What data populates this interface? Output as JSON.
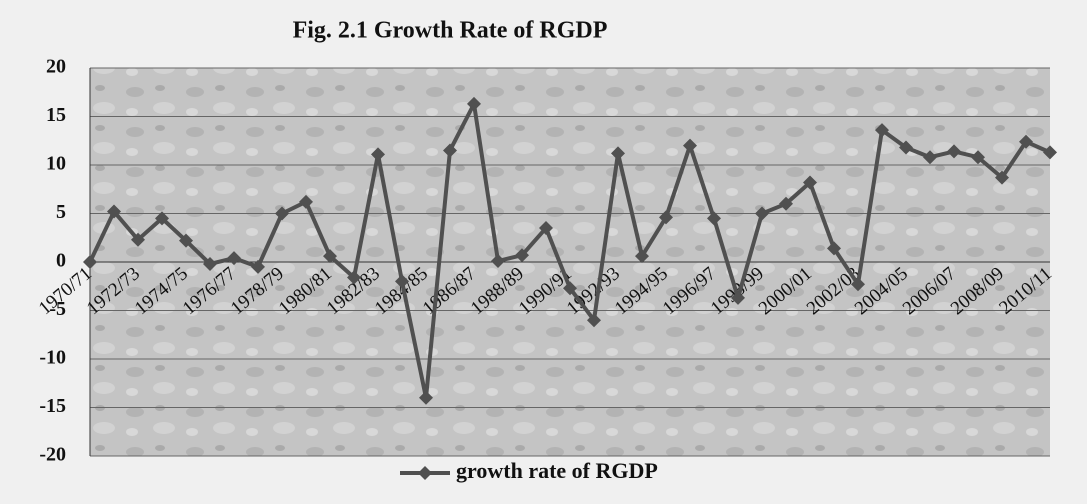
{
  "chart_data": {
    "type": "line",
    "title": "Fig. 2.1  Growth Rate of RGDP",
    "categories": [
      "1970/71",
      null,
      "1972/73",
      null,
      "1974/75",
      null,
      "1976/77",
      null,
      "1978/79",
      null,
      "1980/81",
      null,
      "1982/83",
      null,
      "1984/85",
      null,
      "1986/87",
      null,
      "1988/89",
      null,
      "1990/91",
      null,
      "1992/93",
      null,
      "1994/95",
      null,
      "1996/97",
      null,
      "1998/99",
      null,
      "2000/01",
      null,
      "2002/03",
      null,
      "2004/05",
      null,
      "2006/07",
      null,
      "2008/09",
      null,
      "2010/11"
    ],
    "series": [
      {
        "name": "growth rate of RGDP",
        "color": "#505050",
        "values": [
          0,
          5.2,
          2.3,
          4.5,
          2.2,
          -0.2,
          0.4,
          -0.5,
          5,
          6.2,
          0.6,
          -1.6,
          11.1,
          -2,
          -14,
          11.5,
          16.3,
          0.1,
          0.7,
          3.5,
          -2.7,
          -6,
          11.2,
          0.6,
          4.6,
          12,
          4.5,
          -3.7,
          5,
          6,
          8.2,
          1.4,
          -2.3,
          13.6,
          11.8,
          10.8,
          11.4,
          10.8,
          8.7,
          12.4,
          11.3
        ]
      }
    ],
    "ylim": [
      -20,
      20
    ],
    "yticks": [
      -20,
      -15,
      -10,
      -5,
      0,
      5,
      10,
      15,
      20
    ],
    "grid": true,
    "legend": "bottom"
  }
}
